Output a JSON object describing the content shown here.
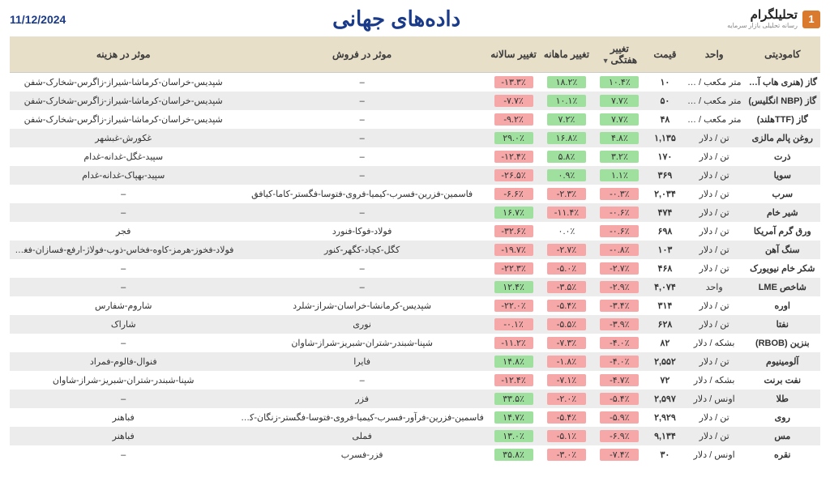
{
  "header": {
    "brand": "تحلیلگرام",
    "tagline": "رسانه تحلیلی بازار سرمایه",
    "logo_glyph": "1",
    "title": "داده‌های جهانی",
    "date": "11/12/2024"
  },
  "columns": {
    "commodity": "کامودیتی",
    "unit": "واحد",
    "price": "قیمت",
    "weekly": "تغییر هفتگی",
    "monthly": "تغییر ماهانه",
    "yearly": "تغییر سالانه",
    "sales_effect": "موثر در فروش",
    "cost_effect": "موثر در هزینه"
  },
  "rows": [
    {
      "commodity": "گاز (هنری هاب آمریکا)",
      "unit": "متر مکعب / سنت",
      "price": "۱۰",
      "w": "١٠.۴٪",
      "wv": 1,
      "m": "١٨.٢٪",
      "mv": 1,
      "y": "-١٣.٣٪",
      "yv": -1,
      "sales": "–",
      "cost": "شپدیس-خراسان-کرماشا-شیراز-زاگرس-شخارک-شفن"
    },
    {
      "commodity": "گاز (NBP انگلیس)",
      "unit": "متر مکعب / سنت",
      "price": "۵۰",
      "w": "٧.٧٪",
      "wv": 1,
      "m": "١٠.١٪",
      "mv": 1,
      "y": "-٧.٧٪",
      "yv": -1,
      "sales": "–",
      "cost": "شپدیس-خراسان-کرماشا-شیراز-زاگرس-شخارک-شفن"
    },
    {
      "commodity": "گاز (TTFهلند)",
      "unit": "متر مکعب / سنت",
      "price": "۴۸",
      "w": "٧.٧٪",
      "wv": 1,
      "m": "٧.٢٪",
      "mv": 1,
      "y": "-٩.٢٪",
      "yv": -1,
      "sales": "–",
      "cost": "شپدیس-خراسان-کرماشا-شیراز-زاگرس-شخارک-شفن"
    },
    {
      "commodity": "روغن پالم مالزی",
      "unit": "تن / دلار",
      "price": "۱,۱۳۵",
      "w": "۴.٨٪",
      "wv": 1,
      "m": "١۶.٨٪",
      "mv": 1,
      "y": "٢٩.٠٪",
      "yv": 1,
      "sales": "–",
      "cost": "غکورش-غبشهر"
    },
    {
      "commodity": "ذرت",
      "unit": "تن / دلار",
      "price": "۱۷۰",
      "w": "٣.٢٪",
      "wv": 1,
      "m": "۵.٨٪",
      "mv": 1,
      "y": "-١٢.۴٪",
      "yv": -1,
      "sales": "–",
      "cost": "سپید-غگل-غدانه-غدام"
    },
    {
      "commodity": "سویا",
      "unit": "تن / دلار",
      "price": "۳۶۹",
      "w": "١.١٪",
      "wv": 1,
      "m": "٠.٩٪",
      "mv": 1,
      "y": "-٢۶.۵٪",
      "yv": -1,
      "sales": "–",
      "cost": "سپید-بهپاک-غدانه-غدام"
    },
    {
      "commodity": "سرب",
      "unit": "تن / دلار",
      "price": "۲,۰۳۴",
      "w": "-٠.٣٪",
      "wv": -1,
      "m": "-٢.٣٪",
      "mv": -1,
      "y": "-۶.۶٪",
      "yv": -1,
      "sales": "فاسمین-فزرین-فسرب-کیمیا-فروی-فتوسا-فگستر-کاما-کیافق",
      "cost": "–"
    },
    {
      "commodity": "شیر خام",
      "unit": "تن / دلار",
      "price": "۴۷۴",
      "w": "-٠.۶٪",
      "wv": -1,
      "m": "-١١.۴٪",
      "mv": -1,
      "y": "١۶.٧٪",
      "yv": 1,
      "sales": "–",
      "cost": "–"
    },
    {
      "commodity": "ورق گرم آمریکا",
      "unit": "تن / دلار",
      "price": "۶۹۸",
      "w": "-٠.۶٪",
      "wv": -1,
      "m": "٠.٠٪",
      "mv": 0,
      "y": "-٣٢.۶٪",
      "yv": -1,
      "sales": "فولاد-فوکا-فنورد",
      "cost": "فجر"
    },
    {
      "commodity": "سنگ آهن",
      "unit": "تن / دلار",
      "price": "۱۰۳",
      "w": "-٠.٨٪",
      "wv": -1,
      "m": "-٢.٧٪",
      "mv": -1,
      "y": "-١٩.٧٪",
      "yv": -1,
      "sales": "کگل-کچاد-کگهر-کنور",
      "cost": "فولاد-فخوز-هرمز-کاوه-فخاس-ذوب-فولاژ-ارفع-فسازان-فغدیر"
    },
    {
      "commodity": "شکر خام نیویورک",
      "unit": "تن / دلار",
      "price": "۴۶۸",
      "w": "-٢.٧٪",
      "wv": -1,
      "m": "-۵.٠٪",
      "mv": -1,
      "y": "-٢٢.٣٪",
      "yv": -1,
      "sales": "–",
      "cost": "–"
    },
    {
      "commodity": "شاخص LME",
      "unit": "واحد",
      "price": "۴,۰۷۴",
      "w": "-٢.٩٪",
      "wv": -1,
      "m": "-٣.۵٪",
      "mv": -1,
      "y": "١٢.۴٪",
      "yv": 1,
      "sales": "–",
      "cost": "–"
    },
    {
      "commodity": "اوره",
      "unit": "تن / دلار",
      "price": "۳۱۴",
      "w": "-٣.۴٪",
      "wv": -1,
      "m": "-۵.۴٪",
      "mv": -1,
      "y": "-٢٢.٠٪",
      "yv": -1,
      "sales": "شپدیس-کرمانشا-خراسان-شراز-شلرد",
      "cost": "شاروم-شفارس"
    },
    {
      "commodity": "نفتا",
      "unit": "تن / دلار",
      "price": "۶۲۸",
      "w": "-٣.٩٪",
      "wv": -1,
      "m": "-۵.۵٪",
      "mv": -1,
      "y": "-٠.١٪",
      "yv": -0.001,
      "sales": "نوری",
      "cost": "شاراک"
    },
    {
      "commodity": "بنزین (RBOB)",
      "unit": "بشکه / دلار",
      "price": "۸۲",
      "w": "-۴.٠٪",
      "wv": -1,
      "m": "-٧.٣٪",
      "mv": -1,
      "y": "-١١.٢٪",
      "yv": -1,
      "sales": "شپنا-شبندر-شتران-شبریز-شراز-شاوان",
      "cost": "–"
    },
    {
      "commodity": "آلومینیوم",
      "unit": "تن / دلار",
      "price": "۲,۵۵۲",
      "w": "-۴.٠٪",
      "wv": -1,
      "m": "-١.٨٪",
      "mv": -1,
      "y": "١۴.٨٪",
      "yv": 1,
      "sales": "فایرا",
      "cost": "فنوال-فالوم-فمراد"
    },
    {
      "commodity": "نفت برنت",
      "unit": "بشکه / دلار",
      "price": "۷۲",
      "w": "-۴.٧٪",
      "wv": -1,
      "m": "-٧.١٪",
      "mv": -1,
      "y": "-١٢.۴٪",
      "yv": -1,
      "sales": "–",
      "cost": "شپنا-شبندر-شتران-شبریز-شراز-شاوان"
    },
    {
      "commodity": "طلا",
      "unit": "اونس / دلار",
      "price": "۲,۵۹۷",
      "w": "-۵.۴٪",
      "wv": -1,
      "m": "-٢.٠٪",
      "mv": -1,
      "y": "٣٣.۵٪",
      "yv": 1,
      "sales": "فزر",
      "cost": "–"
    },
    {
      "commodity": "روی",
      "unit": "تن / دلار",
      "price": "۲,۹۲۹",
      "w": "-۵.٩٪",
      "wv": -1,
      "m": "-۵.۴٪",
      "mv": -1,
      "y": "١۴.٧٪",
      "yv": 1,
      "sales": "فاسمین-فزرین-فرآور-فسرب-کیمیا-فروی-فتوسا-فگستر-زنگان-کاما-کیافق",
      "cost": "فباهنر"
    },
    {
      "commodity": "مس",
      "unit": "تن / دلار",
      "price": "۹,۱۳۴",
      "w": "-۶.٩٪",
      "wv": -1,
      "m": "-۵.١٪",
      "mv": -1,
      "y": "١٣.٠٪",
      "yv": 1,
      "sales": "فملی",
      "cost": "فباهنر"
    },
    {
      "commodity": "نقره",
      "unit": "اونس / دلار",
      "price": "۳۰",
      "w": "-٧.۴٪",
      "wv": -1,
      "m": "-٣.٠٪",
      "mv": -1,
      "y": "٣۵.٨٪",
      "yv": 1,
      "sales": "فزر-فسرب",
      "cost": "–"
    }
  ],
  "style": {
    "header_bg": "#e8dfc9",
    "row_alt_bg": "#ececec",
    "pos_bg": "#9fe09f",
    "neg_bg": "#f6a7a7",
    "title_color": "#1a3a8a"
  }
}
